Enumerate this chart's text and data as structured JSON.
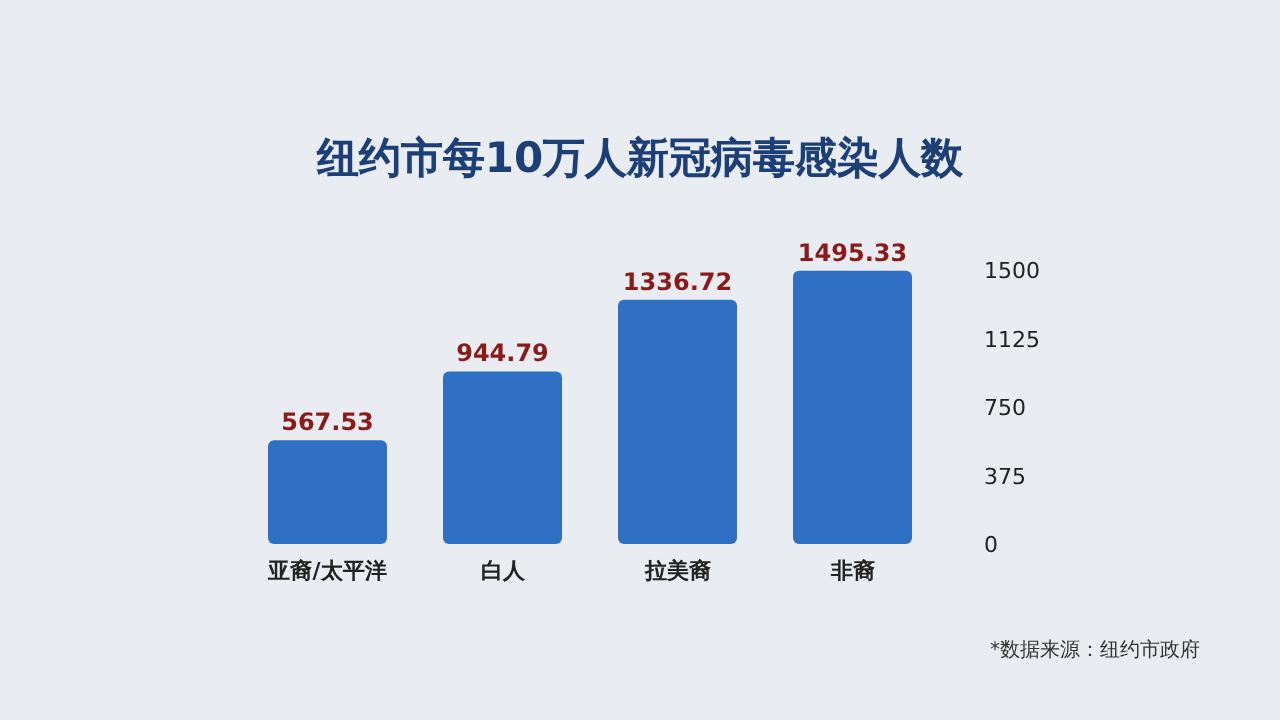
{
  "chart_data": {
    "type": "bar",
    "title": "纽约市每10万人新冠病毒感染人数",
    "categories": [
      "亚裔/太平洋",
      "白人",
      "拉美裔",
      "非裔"
    ],
    "values": [
      567.53,
      944.79,
      1336.72,
      1495.33
    ],
    "color": "#2f6fc4",
    "ylim": [
      0,
      1500
    ],
    "yticks": [
      0,
      375,
      750,
      1125,
      1500
    ],
    "data_labels": true,
    "grid": false,
    "annotations": [
      "*数据来源：纽约市政府"
    ]
  }
}
